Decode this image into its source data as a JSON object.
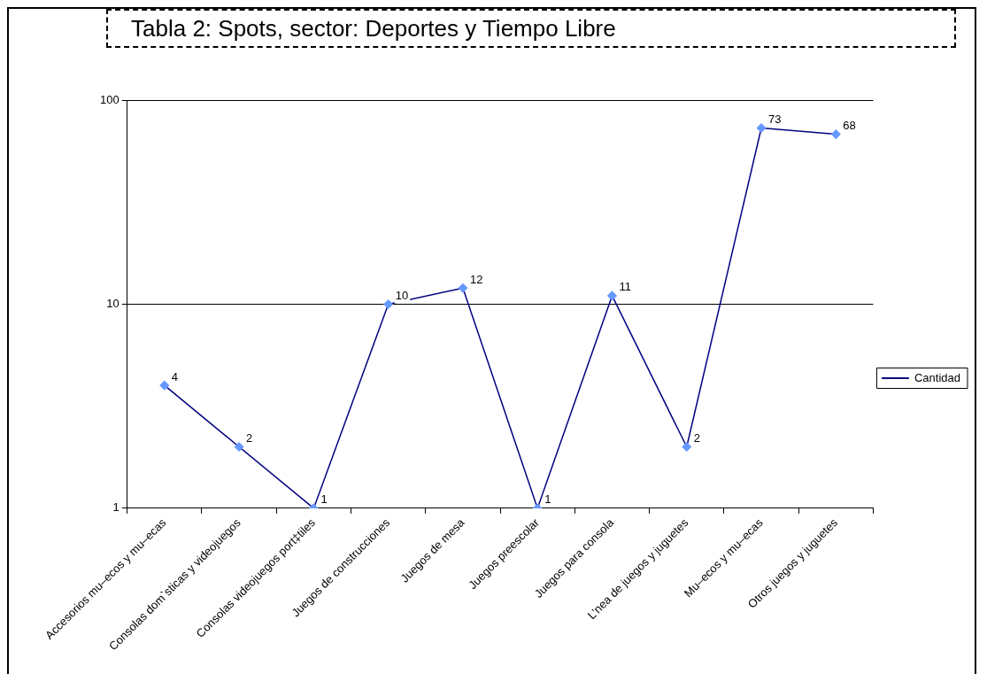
{
  "chart_data": {
    "type": "line",
    "title": "Tabla 2: Spots, sector: Deportes y Tiempo Libre",
    "categories": [
      "Accesorios mu–ecos y mu–ecas",
      "Consolas dom`sticas y videojuegos",
      "Consolas videojuegos port‡tiles",
      "Juegos de construcciones",
      "Juegos de mesa",
      "Juegos preescolar",
      "Juegos para consola",
      "L'nea de juegos y juguetes",
      "Mu–ecos y mu–ecas",
      "Otros juegos y juguetes"
    ],
    "series": [
      {
        "name": "Cantidad",
        "color": "#000080",
        "colors": [
          "#6699ff",
          "#6699ff",
          "#6699ff",
          "#6699ff",
          "#6699ff",
          "#6699ff",
          "#6699ff",
          "#6699ff",
          "#6699ff",
          "#6699ff"
        ],
        "values": [
          4,
          2,
          1,
          10,
          12,
          1,
          11,
          2,
          73,
          68
        ]
      }
    ],
    "log": "y",
    "ylim": [
      1,
      100
    ],
    "yticks": [
      1,
      10,
      100
    ],
    "grid": "y",
    "legend": "right",
    "marker": "diamond",
    "line_style": "solid",
    "data_labels": true
  }
}
